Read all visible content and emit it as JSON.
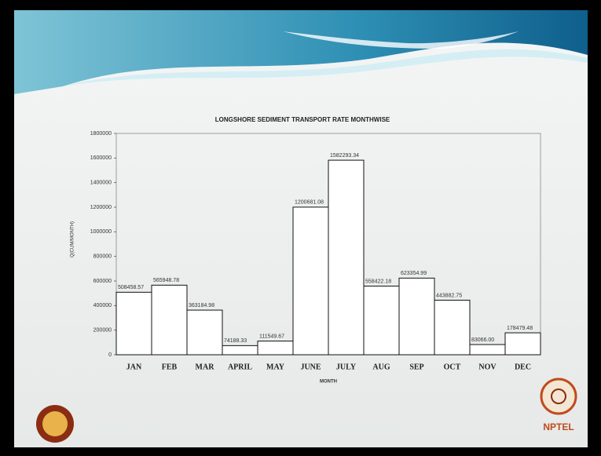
{
  "chart_data": {
    "type": "bar",
    "title": "LONGSHORE SEDIMENT TRANSPORT RATE MONTHWISE",
    "x_label": "MONTH",
    "y_label": "Q(CUM/MONTH)",
    "categories": [
      "JAN",
      "FEB",
      "MAR",
      "APRIL",
      "MAY",
      "JUNE",
      "JULY",
      "AUG",
      "SEP",
      "OCT",
      "NOV",
      "DEC"
    ],
    "values": [
      508458.57,
      565948.78,
      363184.98,
      74188.33,
      111549.67,
      1200681.08,
      1582293.34,
      558422.18,
      623354.99,
      443882.75,
      83066.0,
      178479.48
    ],
    "value_labels": [
      "508458.57",
      "565948.78",
      "363184.98",
      "74188.33",
      "111549.67",
      "1200681.08",
      "1582293.34",
      "558422.18",
      "623354.99",
      "443882.75",
      "83066.00",
      "178479.48"
    ],
    "color": "#ffffff",
    "ylim": [
      0,
      1800000
    ],
    "yticks": [
      0,
      200000,
      400000,
      600000,
      800000,
      1000000,
      1200000,
      1400000,
      1600000,
      1800000
    ]
  },
  "branding": {
    "logo_text": "NPTEL"
  }
}
